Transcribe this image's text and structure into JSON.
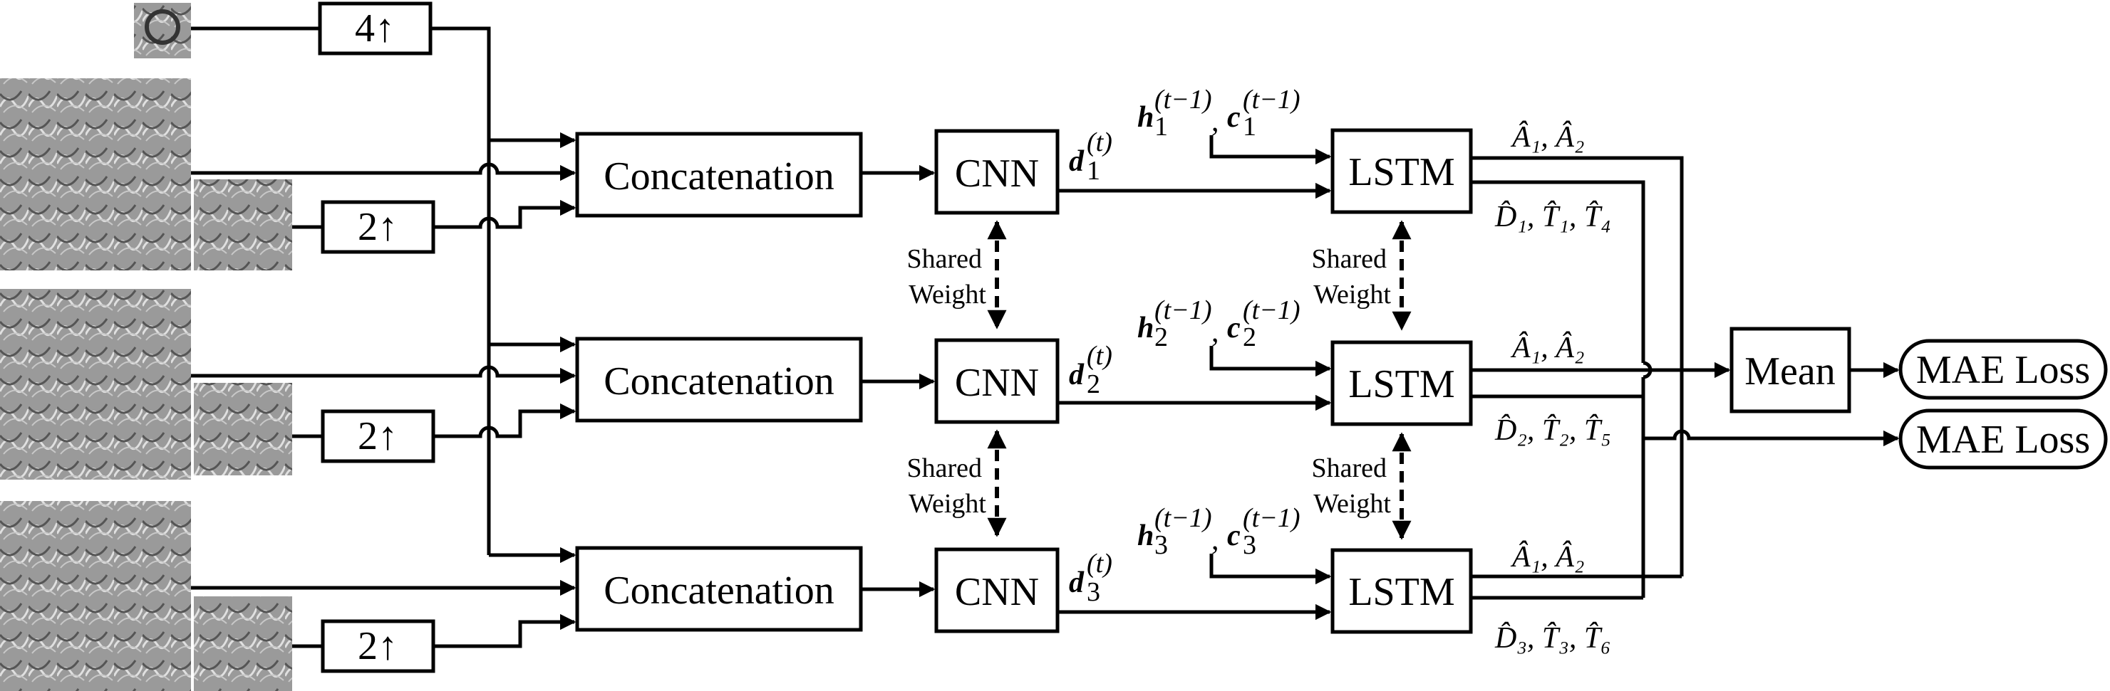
{
  "upsample": {
    "top": "4↑",
    "row1": "2↑",
    "row2": "2↑",
    "row3": "2↑"
  },
  "concat": [
    "Concatenation",
    "Concatenation",
    "Concatenation"
  ],
  "cnn": [
    "CNN",
    "CNN",
    "CNN"
  ],
  "lstm": [
    "LSTM",
    "LSTM",
    "LSTM"
  ],
  "shared": {
    "line1": "Shared",
    "line2": "Weight"
  },
  "features": [
    {
      "sym": "d",
      "sub": "1",
      "sup": "(t)"
    },
    {
      "sym": "d",
      "sub": "2",
      "sup": "(t)"
    },
    {
      "sym": "d",
      "sub": "3",
      "sup": "(t)"
    }
  ],
  "hidden": [
    {
      "h_sub": "1",
      "c_sub": "1",
      "sup": "(t−1)"
    },
    {
      "h_sub": "2",
      "c_sub": "2",
      "sup": "(t−1)"
    },
    {
      "h_sub": "3",
      "c_sub": "3",
      "sup": "(t−1)"
    }
  ],
  "outputs": [
    {
      "top": "Â₁, Â₂",
      "bottom": "D̂₁, T̂₁, T̂₄"
    },
    {
      "top": "Â₁, Â₂",
      "bottom": "D̂₂, T̂₂, T̂₅"
    },
    {
      "top": "Â₁, Â₂",
      "bottom": "D̂₃, T̂₃, T̂₆"
    }
  ],
  "mean": "Mean",
  "losses": [
    "MAE Loss",
    "MAE Loss"
  ]
}
